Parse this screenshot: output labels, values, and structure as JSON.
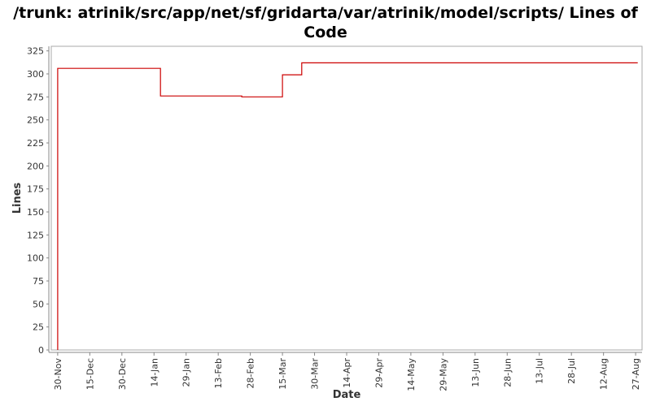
{
  "chart_data": {
    "type": "line",
    "title": "/trunk: atrinik/src/app/net/sf/gridarta/var/atrinik/model/scripts/ Lines of Code",
    "xlabel": "Date",
    "ylabel": "Lines",
    "x_tick_labels": [
      "30-Nov",
      "15-Dec",
      "30-Dec",
      "14-Jan",
      "29-Jan",
      "13-Feb",
      "28-Feb",
      "15-Mar",
      "30-Mar",
      "14-Apr",
      "29-Apr",
      "14-May",
      "29-May",
      "13-Jun",
      "28-Jun",
      "13-Jul",
      "28-Jul",
      "12-Aug",
      "27-Aug"
    ],
    "y_ticks": [
      0,
      25,
      50,
      75,
      100,
      125,
      150,
      175,
      200,
      225,
      250,
      275,
      300,
      325
    ],
    "ylim": [
      0,
      330
    ],
    "x_unit": "days from 30-Nov",
    "xlim": [
      -3,
      273
    ],
    "step": true,
    "grid": false,
    "series": [
      {
        "name": "",
        "color": "#cc0000",
        "x": [
          0,
          0,
          48,
          86,
          105,
          114,
          287
        ],
        "y": [
          0,
          306,
          276,
          275,
          299,
          312,
          312
        ]
      }
    ]
  }
}
